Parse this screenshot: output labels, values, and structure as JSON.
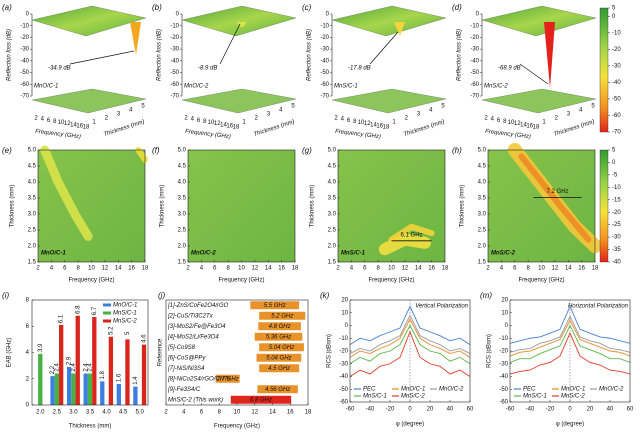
{
  "chart_data": [
    {
      "type": "surface3d",
      "panels": [
        {
          "label": "(a)",
          "name": "MnO/C-1",
          "annotation": "-34.9 dB"
        },
        {
          "label": "(b)",
          "name": "MnO/C-2",
          "annotation": "-8.9 dB"
        },
        {
          "label": "(c)",
          "name": "MnS/C-1",
          "annotation": "-17.8 dB"
        },
        {
          "label": "(d)",
          "name": "MnS/C-2",
          "annotation": "-68.9 dB"
        }
      ],
      "zlabel": "Reflection loss (dB)",
      "xlabel": "Frequency (GHz)",
      "ylabel": "Thickness (mm)",
      "zlim": [
        -70,
        0
      ],
      "zticks": [
        0,
        -10,
        -20,
        -30,
        -40,
        -50,
        -60,
        -70
      ],
      "xticks": [
        2,
        4,
        6,
        8,
        10,
        12,
        14,
        16,
        18
      ],
      "yticks": [
        1,
        2,
        3,
        4,
        5
      ],
      "colorbar": {
        "lim": [
          -70,
          5
        ],
        "ticks": [
          5,
          0,
          -10,
          -20,
          -30,
          -40,
          -50,
          -60,
          -70
        ]
      }
    },
    {
      "type": "heatmap",
      "panels": [
        {
          "label": "(e)",
          "name": "MnO/C-1"
        },
        {
          "label": "(f)",
          "name": "MnO/C-2"
        },
        {
          "label": "(g)",
          "name": "MnS/C-1",
          "annotation": "6.1 GHz"
        },
        {
          "label": "(h)",
          "name": "MnS/C-2",
          "annotation": "7.2 GHz"
        }
      ],
      "xlabel": "Frequency (GHz)",
      "ylabel": "Thickness (mm)",
      "xlim": [
        2,
        18
      ],
      "xticks": [
        2,
        4,
        6,
        8,
        10,
        12,
        14,
        16,
        18
      ],
      "ylim": [
        1.5,
        5
      ],
      "yticks": [
        1.5,
        {
          "value": 2,
          "label": "2.0"
        },
        2.5,
        {
          "value": 3,
          "label": "3.0"
        },
        3.5,
        {
          "value": 4,
          "label": "4.0"
        },
        4.5,
        {
          "value": 5,
          "label": "5.0"
        }
      ],
      "colorbar": {
        "lim": [
          -40,
          5
        ],
        "ticks": [
          5,
          0,
          -5,
          -10,
          -15,
          -20,
          -25,
          -30,
          -35,
          -40
        ]
      }
    },
    {
      "type": "bar",
      "label": "(i)",
      "xlabel": "Thickness (mm)",
      "ylabel": "EAB (GHz)",
      "categories": [
        "2.0",
        "2.5",
        "3.0",
        "3.5",
        "4.0",
        "4.5",
        "5.0"
      ],
      "series": [
        {
          "name": "MnO/C-1",
          "color": "#3d7fe0",
          "values": [
            null,
            2.2,
            2.9,
            2.4,
            1.8,
            1.6,
            1.4
          ]
        },
        {
          "name": "MnS/C-1",
          "color": "#49b043",
          "values": [
            3.9,
            2.4,
            2.4,
            2.4,
            null,
            null,
            null
          ]
        },
        {
          "name": "MnS/C-2",
          "color": "#d9261c",
          "values": [
            null,
            6.1,
            6.8,
            6.7,
            5.2,
            5.0,
            4.6
          ]
        }
      ],
      "ylim": [
        0,
        8
      ],
      "yticks": [
        0,
        2,
        4,
        6,
        8
      ]
    },
    {
      "type": "range",
      "label": "(j)",
      "xlabel": "Frequency (GHz)",
      "ylabel": "Reference",
      "references": [
        "[1]-ZnS/CoFe2O4/rGO",
        "[2]-CuS/Ti3C2Tx",
        "[3]-MoS2/Fe@Fe3O4",
        "[4]-MoS2/Li/Fe3O4",
        "[5]-Co9S8",
        "[6]-CoS@PPy",
        "[7]-NiS/Ni3S4",
        "[8]-NiCo2S4/rGO/CNTs",
        "[9]-Fe3S4/C",
        "MnS/C-2 (This work)"
      ],
      "start": [
        11.5,
        12.5,
        12.4,
        12.0,
        12.5,
        12.2,
        12.5,
        7.6,
        12.3,
        9.3
      ],
      "values": [
        5.5,
        5.2,
        4.8,
        5.36,
        5.04,
        5.04,
        4.5,
        2.7,
        4.56,
        6.8
      ],
      "value_labels": [
        "5.5 GHz",
        "5.2 GHz",
        "4.8 GHz",
        "5.36 GHz",
        "5.04 GHz",
        "5.04 GHz",
        "4.5 GHz",
        "2.7 GHz",
        "4.56 GHz",
        "6.8 GHz"
      ],
      "colors": [
        "#e8922a",
        "#e8922a",
        "#e8922a",
        "#e8922a",
        "#e8922a",
        "#e8922a",
        "#e8922a",
        "#e8922a",
        "#e8922a",
        "#e0261c"
      ],
      "xlim": [
        2,
        18
      ],
      "xticks": [
        2,
        4,
        6,
        8,
        10,
        12,
        14,
        16,
        18
      ]
    },
    {
      "type": "line",
      "label": "(k)",
      "annotation": "Vertical Polarization",
      "xlabel": "φ (degree)",
      "ylabel": "RCS (dBsm)",
      "x": [
        -60,
        -50,
        -40,
        -30,
        -20,
        -10,
        0,
        10,
        20,
        30,
        40,
        50,
        60
      ],
      "series": [
        {
          "name": "PEC",
          "color": "#4a7fd4",
          "values": [
            -15,
            -10,
            -12,
            -8,
            -5,
            -2,
            15,
            -2,
            -5,
            -8,
            -12,
            -10,
            -15
          ]
        },
        {
          "name": "MnO/C-1",
          "color": "#e88a2a",
          "values": [
            -25,
            -20,
            -22,
            -18,
            -15,
            -10,
            5,
            -10,
            -15,
            -18,
            -22,
            -20,
            -25
          ]
        },
        {
          "name": "MnO/C-2",
          "color": "#9a9a9a",
          "values": [
            -22,
            -18,
            -20,
            -15,
            -12,
            -8,
            8,
            -8,
            -12,
            -15,
            -20,
            -18,
            -22
          ]
        },
        {
          "name": "MnS/C-1",
          "color": "#5ab84a",
          "values": [
            -30,
            -25,
            -28,
            -22,
            -20,
            -15,
            0,
            -15,
            -20,
            -22,
            -28,
            -25,
            -30
          ]
        },
        {
          "name": "MnS/C-2",
          "color": "#e23a2a",
          "values": [
            -40,
            -35,
            -38,
            -32,
            -30,
            -25,
            -5,
            -25,
            -30,
            -32,
            -38,
            -35,
            -40
          ]
        }
      ],
      "xlim": [
        -60,
        60
      ],
      "xticks": [
        -60,
        -40,
        -20,
        0,
        20,
        40,
        60
      ],
      "ylim": [
        -60,
        20
      ],
      "yticks": [
        20,
        10,
        0,
        -10,
        -20,
        -30,
        -40,
        -50,
        -60
      ]
    },
    {
      "type": "line",
      "label": "(m)",
      "annotation": "Horizontal Polarization",
      "xlabel": "φ (degree)",
      "ylabel": "RCS (dBsm)",
      "x": [
        -60,
        -50,
        -40,
        -30,
        -20,
        -10,
        0,
        10,
        20,
        30,
        40,
        50,
        60
      ],
      "series": [
        {
          "name": "PEC",
          "color": "#4a7fd4",
          "values": [
            -14,
            -12,
            -10,
            -9,
            -6,
            -3,
            15,
            -3,
            -6,
            -9,
            -10,
            -12,
            -14
          ]
        },
        {
          "name": "MnO/C-1",
          "color": "#e88a2a",
          "values": [
            -24,
            -21,
            -20,
            -17,
            -14,
            -11,
            4,
            -11,
            -14,
            -17,
            -20,
            -21,
            -24
          ]
        },
        {
          "name": "MnO/C-2",
          "color": "#9a9a9a",
          "values": [
            -21,
            -19,
            -18,
            -14,
            -12,
            -9,
            7,
            -9,
            -12,
            -14,
            -18,
            -19,
            -21
          ]
        },
        {
          "name": "MnS/C-1",
          "color": "#5ab84a",
          "values": [
            -29,
            -26,
            -26,
            -22,
            -19,
            -16,
            0,
            -16,
            -19,
            -22,
            -26,
            -26,
            -29
          ]
        },
        {
          "name": "MnS/C-2",
          "color": "#e23a2a",
          "values": [
            -38,
            -36,
            -35,
            -31,
            -29,
            -24,
            -6,
            -24,
            -29,
            -31,
            -35,
            -36,
            -38
          ]
        }
      ],
      "xlim": [
        -60,
        60
      ],
      "xticks": [
        -60,
        -40,
        -20,
        0,
        20,
        40,
        60
      ],
      "ylim": [
        -60,
        20
      ],
      "yticks": [
        20,
        10,
        0,
        -10,
        -20,
        -30,
        -40,
        -50,
        -60
      ]
    }
  ]
}
